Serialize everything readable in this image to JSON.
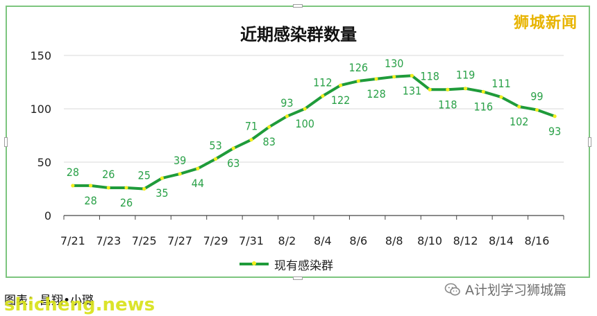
{
  "chart_data": {
    "type": "line",
    "title": "近期感染群数量",
    "x": [
      "7/21",
      "7/22",
      "7/23",
      "7/24",
      "7/25",
      "7/26",
      "7/27",
      "7/28",
      "7/29",
      "7/30",
      "7/31",
      "8/1",
      "8/2",
      "8/3",
      "8/4",
      "8/5",
      "8/6",
      "8/7",
      "8/8",
      "8/9",
      "8/10",
      "8/11",
      "8/12",
      "8/13",
      "8/14",
      "8/15",
      "8/16",
      "8/17"
    ],
    "x_tick_labels": [
      "7/21",
      "7/23",
      "7/25",
      "7/27",
      "7/29",
      "7/31",
      "8/2",
      "8/4",
      "8/6",
      "8/8",
      "8/10",
      "8/12",
      "8/14",
      "8/16"
    ],
    "ylim": [
      0,
      150
    ],
    "y_ticks": [
      "0",
      "50",
      "100",
      "150"
    ],
    "series": [
      {
        "name": "现有感染群",
        "values": [
          28,
          28,
          26,
          26,
          25,
          35,
          39,
          44,
          53,
          63,
          71,
          83,
          93,
          100,
          112,
          122,
          126,
          128,
          130,
          131,
          118,
          118,
          119,
          116,
          111,
          102,
          99,
          93
        ],
        "color": "#1f9b3a",
        "marker_color": "#f3ee1f",
        "label_color": "#2aa148"
      }
    ],
    "grid": "horizontal",
    "legend": "bottom-center"
  },
  "brand": "狮城新闻",
  "caption": "图表：昌翔•小璐",
  "watermark": "shicheng.news",
  "source": "A计划学习狮城篇"
}
